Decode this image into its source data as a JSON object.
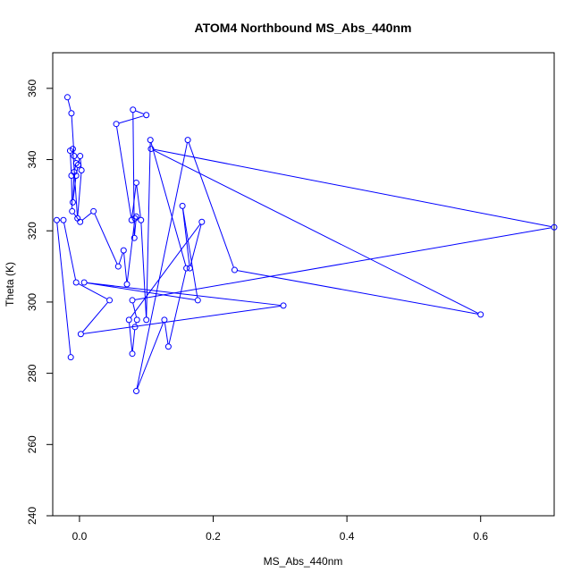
{
  "chart_data": {
    "type": "line",
    "title": "ATOM4 Northbound MS_Abs_440nm",
    "xlabel": "MS_Abs_440nm",
    "ylabel": "Theta (K)",
    "xlim": [
      -0.04,
      0.71
    ],
    "ylim": [
      240,
      370
    ],
    "x_ticks": [
      0.0,
      0.2,
      0.4,
      0.6
    ],
    "x_tick_labels": [
      "0.0",
      "0.2",
      "0.4",
      "0.6"
    ],
    "y_ticks": [
      240,
      260,
      280,
      300,
      320,
      340,
      360
    ],
    "y_tick_labels": [
      "240",
      "260",
      "280",
      "300",
      "320",
      "340",
      "360"
    ],
    "grid": false,
    "legend": "none",
    "series_color": "#0000ff",
    "markers": "open-circle",
    "series": [
      {
        "x": [
          -0.018,
          -0.012,
          -0.008,
          -0.005,
          -0.008,
          -0.01,
          -0.005,
          -0.002,
          0.001,
          0.003,
          -0.003,
          -0.01,
          -0.014,
          -0.012,
          -0.011,
          0.001,
          0.021,
          0.058,
          0.066,
          0.071,
          0.083,
          0.085,
          0.082,
          0.08,
          0.1,
          0.055,
          0.078,
          0.085,
          0.092,
          0.1,
          0.106,
          0.16,
          0.133,
          0.127,
          0.085,
          0.162,
          0.232,
          0.6,
          0.107,
          0.71,
          0.079,
          0.086,
          0.083,
          0.079,
          0.074,
          0.183,
          0.165,
          0.154,
          0.177,
          0.007,
          0.305,
          0.002,
          0.045,
          -0.005,
          -0.024,
          -0.034,
          -0.013
        ],
        "y": [
          357.5,
          353.0,
          341.0,
          339.0,
          336.5,
          328.0,
          335.5,
          338.5,
          341.0,
          337.0,
          323.5,
          343.0,
          342.5,
          335.5,
          325.5,
          322.5,
          325.5,
          310.0,
          314.5,
          305.0,
          323.5,
          324.0,
          318.0,
          354.0,
          352.5,
          350.0,
          323.0,
          333.5,
          323.0,
          295.0,
          345.5,
          309.5,
          287.5,
          295.0,
          275.0,
          345.5,
          309.0,
          296.5,
          343.0,
          321.0,
          300.5,
          295.0,
          293.0,
          285.5,
          295.0,
          322.5,
          309.5,
          327.0,
          300.5,
          305.5,
          299.0,
          291.0,
          300.5,
          305.5,
          323.0,
          323.0,
          284.5
        ]
      }
    ]
  }
}
